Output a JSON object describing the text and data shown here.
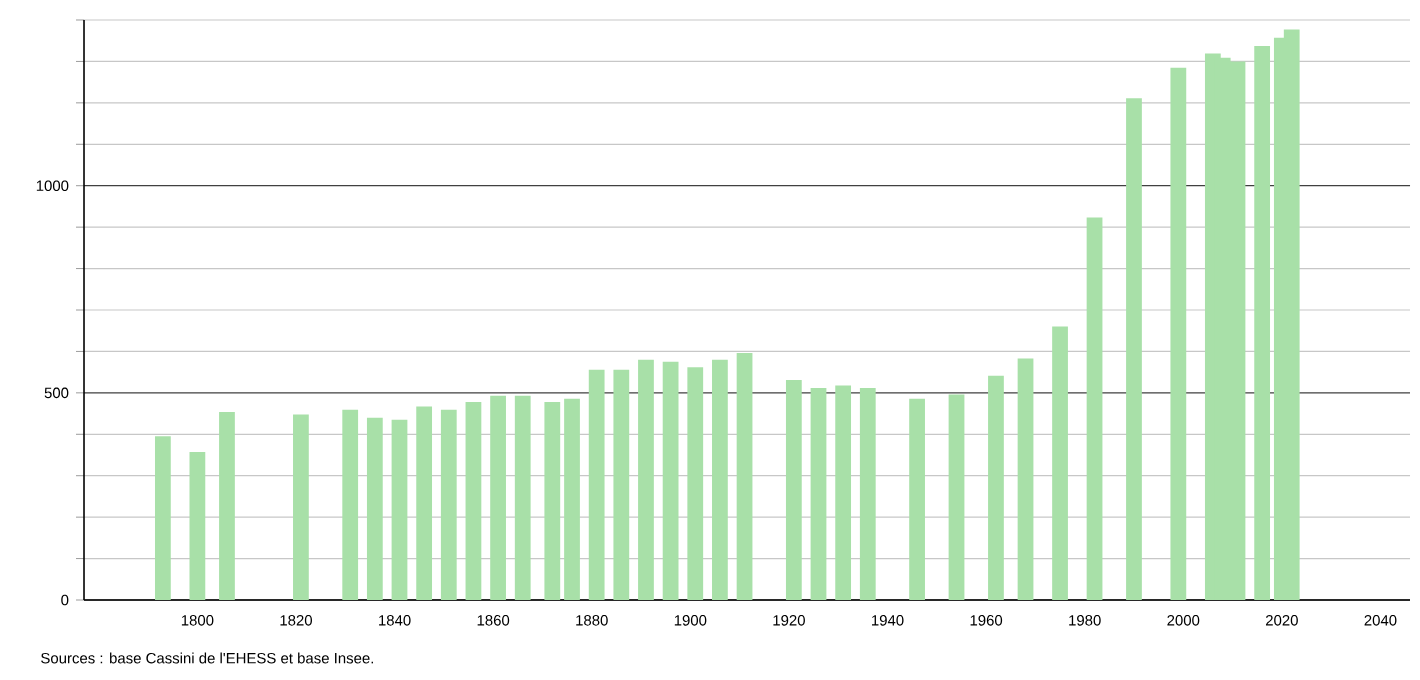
{
  "chart_data": {
    "type": "bar",
    "x": [
      1793,
      1800,
      1806,
      1821,
      1831,
      1836,
      1841,
      1846,
      1851,
      1856,
      1861,
      1866,
      1872,
      1876,
      1881,
      1886,
      1891,
      1896,
      1901,
      1906,
      1911,
      1921,
      1926,
      1931,
      1936,
      1946,
      1954,
      1962,
      1968,
      1975,
      1982,
      1990,
      1999,
      2006,
      2008,
      2011,
      2016,
      2020,
      2022
    ],
    "values": [
      395,
      357,
      454,
      448,
      459,
      440,
      435,
      467,
      459,
      478,
      493,
      493,
      478,
      486,
      556,
      556,
      580,
      575,
      562,
      580,
      596,
      531,
      512,
      518,
      512,
      486,
      496,
      541,
      583,
      660,
      923,
      1211,
      1285,
      1319,
      1309,
      1300,
      1337,
      1357,
      1377
    ],
    "color": "#a8e0a8",
    "xlim": [
      1777,
      2046
    ],
    "xticks": [
      1800,
      1820,
      1840,
      1860,
      1880,
      1900,
      1920,
      1940,
      1960,
      1980,
      2000,
      2020,
      2040
    ],
    "ylim": [
      0,
      1400
    ],
    "yticks": [
      0,
      {
        "value": 100,
        "label": null
      },
      {
        "value": 200,
        "label": null
      },
      {
        "value": 300,
        "label": null
      },
      {
        "value": 400,
        "label": null
      },
      500,
      {
        "value": 600,
        "label": null
      },
      {
        "value": 700,
        "label": null
      },
      {
        "value": 800,
        "label": null
      },
      {
        "value": 900,
        "label": null
      },
      1000,
      {
        "value": 1100,
        "label": null
      },
      {
        "value": 1200,
        "label": null
      },
      {
        "value": 1300,
        "label": null
      },
      {
        "value": 1400,
        "label": null
      }
    ],
    "grid": "y",
    "annotations": [
      "Sources : base Cassini de l'EHESS et base Insee."
    ]
  }
}
